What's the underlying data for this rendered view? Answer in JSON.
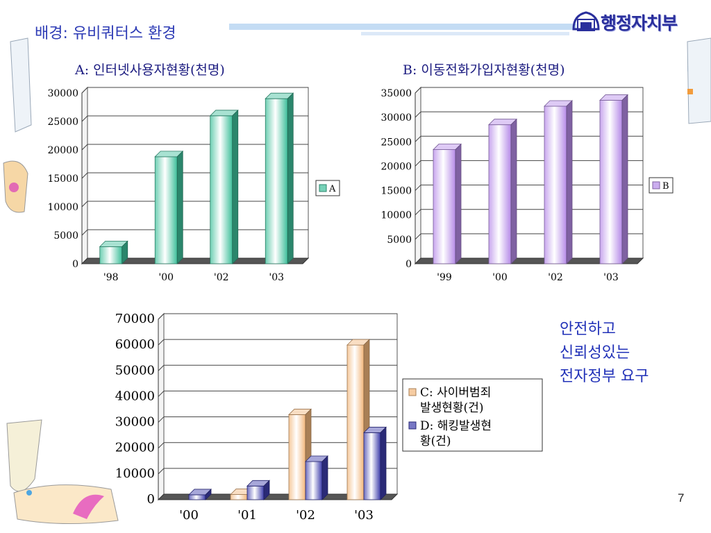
{
  "slide": {
    "title": "배경: 유비쿼터스 환경",
    "ministry_name": "행정자치부",
    "callout_lines": [
      "안전하고",
      "신뢰성있는",
      "전자정부 요구"
    ],
    "page_number": "7"
  },
  "colors": {
    "title_text": "#2d3bb5",
    "series_a": "#3dbf9a",
    "series_b": "#b58ae8",
    "series_c": "#f2b67a",
    "series_d": "#3c3caa",
    "decor_stripe": "#b8d4f2",
    "decor_orange": "#f29c3c"
  },
  "icons": [
    "ministry-emblem-icon"
  ],
  "chart_data": [
    {
      "id": "A",
      "type": "bar",
      "title": "A: 인터넷사용자현황(천명)",
      "categories": [
        "'98",
        "'00",
        "'02",
        "'03"
      ],
      "series": [
        {
          "name": "A",
          "values": [
            3000,
            18800,
            26000,
            29000
          ]
        }
      ],
      "yticks": [
        "0",
        "5000",
        "10000",
        "15000",
        "20000",
        "25000",
        "30000"
      ],
      "ylim": [
        0,
        30000
      ],
      "grid": true,
      "legend": "right"
    },
    {
      "id": "B",
      "type": "bar",
      "title": "B: 이동전화가입자현황(천명)",
      "categories": [
        "'99",
        "'00",
        "'02",
        "'03"
      ],
      "series": [
        {
          "name": "B",
          "values": [
            23400,
            28500,
            32300,
            33500
          ]
        }
      ],
      "yticks": [
        "0",
        "5000",
        "10000",
        "15000",
        "20000",
        "25000",
        "30000",
        "35000"
      ],
      "ylim": [
        0,
        35000
      ],
      "grid": true,
      "legend": "right"
    },
    {
      "id": "CD",
      "type": "bar",
      "title": "",
      "categories": [
        "'00",
        "'01",
        "'02",
        "'03"
      ],
      "series": [
        {
          "name": "C: 사이버범죄발생현황(건)",
          "values": [
            0,
            2000,
            33000,
            60000
          ]
        },
        {
          "name": "D: 해킹발생현황(건)",
          "values": [
            1900,
            5300,
            14800,
            26000
          ]
        }
      ],
      "legend_lines": [
        [
          "C: 사이버범죄",
          "발생현황(건)"
        ],
        [
          "D: 해킹발생현",
          "황(건)"
        ]
      ],
      "yticks": [
        "0",
        "10000",
        "20000",
        "30000",
        "40000",
        "50000",
        "60000",
        "70000"
      ],
      "ylim": [
        0,
        70000
      ],
      "grid": true,
      "legend": "right"
    }
  ]
}
